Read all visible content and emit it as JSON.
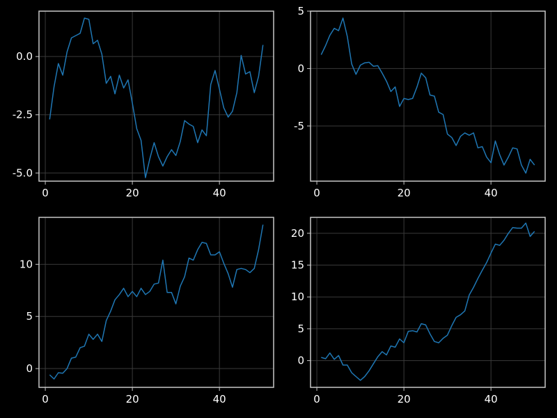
{
  "colors": {
    "background": "#000000",
    "line": "#1f77b4",
    "frame": "#c8c8c8",
    "grid": "#3a3a3a",
    "text": "#ffffff"
  },
  "chart_data": [
    {
      "type": "line",
      "title": "",
      "xlabel": "",
      "ylabel": "",
      "grid": true,
      "xlim": [
        -1.45,
        52.45
      ],
      "ylim": [
        -5.35,
        1.95
      ],
      "xticks": [
        0,
        20,
        40
      ],
      "xtick_labels": [
        "0",
        "20",
        "40"
      ],
      "yticks": [
        0.0,
        -2.5,
        -5.0
      ],
      "ytick_labels": [
        "0.0",
        "-2.5",
        "-5.0"
      ],
      "series": [
        {
          "x": [
            1,
            2,
            3,
            4,
            5,
            6,
            7,
            8,
            9,
            10,
            11,
            12,
            13,
            14,
            15,
            16,
            17,
            18,
            19,
            20,
            21,
            22,
            23,
            24,
            25,
            26,
            27,
            28,
            29,
            30,
            31,
            32,
            33,
            34,
            35,
            36,
            37,
            38,
            39,
            40,
            41,
            42,
            43,
            44,
            45,
            46,
            47,
            48,
            49,
            50
          ],
          "values": [
            -2.7,
            -1.3,
            -0.3,
            -0.8,
            0.2,
            0.8,
            0.9,
            1.0,
            1.65,
            1.6,
            0.55,
            0.7,
            0.1,
            -1.15,
            -0.85,
            -1.6,
            -0.8,
            -1.35,
            -1.0,
            -2.0,
            -3.1,
            -3.6,
            -5.2,
            -4.4,
            -3.7,
            -4.3,
            -4.7,
            -4.3,
            -4.0,
            -4.25,
            -3.65,
            -2.75,
            -2.9,
            -3.0,
            -3.7,
            -3.15,
            -3.4,
            -1.2,
            -0.6,
            -1.4,
            -2.2,
            -2.6,
            -2.35,
            -1.55,
            0.05,
            -0.75,
            -0.65,
            -1.55,
            -0.85,
            0.5
          ]
        }
      ]
    },
    {
      "type": "line",
      "title": "",
      "xlabel": "",
      "ylabel": "",
      "grid": true,
      "xlim": [
        -1.45,
        52.45
      ],
      "ylim": [
        -9.8,
        5.0
      ],
      "xticks": [
        0,
        20,
        40
      ],
      "xtick_labels": [
        "0",
        "20",
        "40"
      ],
      "yticks": [
        5,
        0,
        -5
      ],
      "ytick_labels": [
        "5",
        "0",
        "-5"
      ],
      "series": [
        {
          "x": [
            1,
            2,
            3,
            4,
            5,
            6,
            7,
            8,
            9,
            10,
            11,
            12,
            13,
            14,
            15,
            16,
            17,
            18,
            19,
            20,
            21,
            22,
            23,
            24,
            25,
            26,
            27,
            28,
            29,
            30,
            31,
            32,
            33,
            34,
            35,
            36,
            37,
            38,
            39,
            40,
            41,
            42,
            43,
            44,
            45,
            46,
            47,
            48,
            49,
            50
          ],
          "values": [
            1.2,
            2.0,
            2.9,
            3.5,
            3.3,
            4.4,
            2.8,
            0.4,
            -0.5,
            0.3,
            0.5,
            0.55,
            0.2,
            0.25,
            -0.4,
            -1.1,
            -2.0,
            -1.6,
            -3.3,
            -2.6,
            -2.7,
            -2.6,
            -1.6,
            -0.4,
            -0.8,
            -2.3,
            -2.4,
            -3.8,
            -4.0,
            -5.7,
            -6.0,
            -6.7,
            -5.9,
            -5.6,
            -5.8,
            -5.6,
            -6.9,
            -6.8,
            -7.7,
            -8.2,
            -6.3,
            -7.5,
            -8.4,
            -7.7,
            -6.9,
            -7.0,
            -8.4,
            -9.1,
            -7.9,
            -8.4
          ]
        }
      ]
    },
    {
      "type": "line",
      "title": "",
      "xlabel": "",
      "ylabel": "",
      "grid": true,
      "xlim": [
        -1.45,
        52.45
      ],
      "ylim": [
        -1.8,
        14.5
      ],
      "xticks": [
        0,
        20,
        40
      ],
      "xtick_labels": [
        "0",
        "20",
        "40"
      ],
      "yticks": [
        10,
        5,
        0
      ],
      "ytick_labels": [
        "10",
        "5",
        "0"
      ],
      "series": [
        {
          "x": [
            1,
            2,
            3,
            4,
            5,
            6,
            7,
            8,
            9,
            10,
            11,
            12,
            13,
            14,
            15,
            16,
            17,
            18,
            19,
            20,
            21,
            22,
            23,
            24,
            25,
            26,
            27,
            28,
            29,
            30,
            31,
            32,
            33,
            34,
            35,
            36,
            37,
            38,
            39,
            40,
            41,
            42,
            43,
            44,
            45,
            46,
            47,
            48,
            49,
            50
          ],
          "values": [
            -0.6,
            -1.0,
            -0.4,
            -0.45,
            0.0,
            1.0,
            1.1,
            2.0,
            2.15,
            3.3,
            2.8,
            3.3,
            2.6,
            4.6,
            5.5,
            6.6,
            7.1,
            7.7,
            6.9,
            7.4,
            6.9,
            7.7,
            7.1,
            7.4,
            8.1,
            8.2,
            10.4,
            7.3,
            7.3,
            6.2,
            7.9,
            8.8,
            10.6,
            10.4,
            11.4,
            12.1,
            12.0,
            10.9,
            10.9,
            11.2,
            10.1,
            9.1,
            7.8,
            9.5,
            9.6,
            9.5,
            9.2,
            9.6,
            11.4,
            13.8
          ]
        }
      ]
    },
    {
      "type": "line",
      "title": "",
      "xlabel": "",
      "ylabel": "",
      "grid": true,
      "xlim": [
        -1.45,
        52.45
      ],
      "ylim": [
        -4.2,
        22.5
      ],
      "xticks": [
        0,
        20,
        40
      ],
      "xtick_labels": [
        "0",
        "20",
        "40"
      ],
      "yticks": [
        20,
        15,
        10,
        5,
        0
      ],
      "ytick_labels": [
        "20",
        "15",
        "10",
        "5",
        "0"
      ],
      "series": [
        {
          "x": [
            1,
            2,
            3,
            4,
            5,
            6,
            7,
            8,
            9,
            10,
            11,
            12,
            13,
            14,
            15,
            16,
            17,
            18,
            19,
            20,
            21,
            22,
            23,
            24,
            25,
            26,
            27,
            28,
            29,
            30,
            31,
            32,
            33,
            34,
            35,
            36,
            37,
            38,
            39,
            40,
            41,
            42,
            43,
            44,
            45,
            46,
            47,
            48,
            49,
            50
          ],
          "values": [
            0.5,
            0.3,
            1.2,
            0.2,
            0.8,
            -0.7,
            -0.7,
            -1.9,
            -2.5,
            -3.1,
            -2.5,
            -1.6,
            -0.5,
            0.6,
            1.4,
            0.9,
            2.3,
            2.1,
            3.4,
            2.8,
            4.6,
            4.7,
            4.5,
            5.8,
            5.6,
            4.2,
            3.0,
            2.8,
            3.5,
            4.0,
            5.5,
            6.8,
            7.2,
            7.8,
            10.3,
            11.5,
            12.9,
            14.2,
            15.4,
            16.9,
            18.3,
            18.1,
            18.9,
            20.0,
            20.9,
            20.8,
            20.8,
            21.6,
            19.5,
            20.3
          ]
        }
      ]
    }
  ]
}
